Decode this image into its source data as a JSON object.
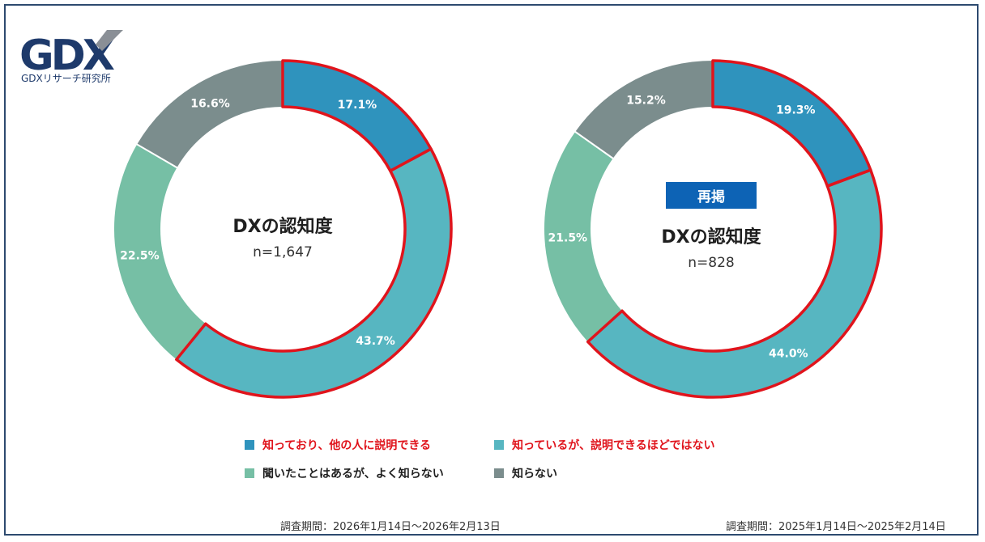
{
  "brand": {
    "logo_text": "GDX",
    "caption": "GDXリサーチ研究所"
  },
  "colors": {
    "explain": "#2f93bd",
    "know_not_explain": "#57b6c1",
    "heard": "#76bfa5",
    "unknown": "#7b8d8d",
    "highlight": "#e0141c",
    "badge": "#0d63b5"
  },
  "legend": [
    {
      "label": "知っており、他の人に説明できる",
      "color": "#2f93bd",
      "highlight": true
    },
    {
      "label": "知っているが、説明できるほどではない",
      "color": "#57b6c1",
      "highlight": true
    },
    {
      "label": "聞いたことはあるが、よく知らない",
      "color": "#76bfa5",
      "highlight": false
    },
    {
      "label": "知らない",
      "color": "#7b8d8d",
      "highlight": false
    }
  ],
  "chart_data": [
    {
      "type": "pie",
      "variant": "donut",
      "title": "DXの認知度",
      "subtitle": "n=1,647",
      "categories": [
        "知っており、他の人に説明できる",
        "知っているが、説明できるほどではない",
        "聞いたことはあるが、よく知らない",
        "知らない"
      ],
      "values": [
        17.1,
        43.7,
        22.5,
        16.6
      ],
      "labels": [
        "17.1%",
        "43.7%",
        "22.5%",
        "16.6%"
      ],
      "highlighted_categories": [
        0,
        1
      ],
      "footer": "調査期間：2026年1月14日～2026年2月13日"
    },
    {
      "type": "pie",
      "variant": "donut",
      "badge": "再掲",
      "title": "DXの認知度",
      "subtitle": "n=828",
      "categories": [
        "知っており、他の人に説明できる",
        "知っているが、説明できるほどではない",
        "聞いたことはあるが、よく知らない",
        "知らない"
      ],
      "values": [
        19.3,
        44.0,
        21.5,
        15.2
      ],
      "labels": [
        "19.3%",
        "44.0%",
        "21.5%",
        "15.2%"
      ],
      "highlighted_categories": [
        0,
        1
      ],
      "footer": "調査期間：2025年1月14日～2025年2月14日"
    }
  ]
}
